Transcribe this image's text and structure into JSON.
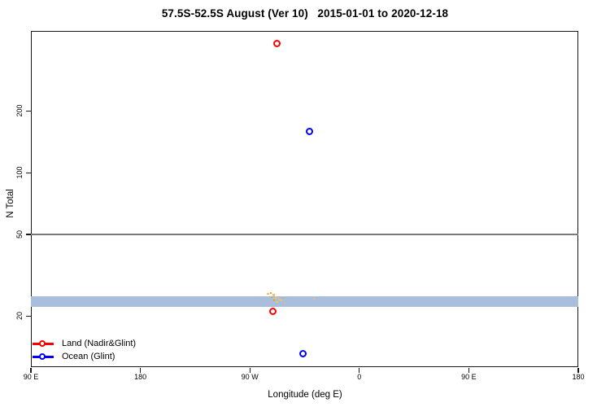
{
  "chart_data": {
    "type": "scatter",
    "title": "57.5S-52.5S August (Ver 10)   2015-01-01 to 2020-12-18",
    "xlabel": "Longitude (deg E)",
    "ylabel": "N Total",
    "y_scale": "log",
    "x_axis_deg_range": [
      90,
      540
    ],
    "ylim": [
      11.3,
      491
    ],
    "grid": "off",
    "legend_position": "bottom-left-inside",
    "x_ticks": [
      {
        "deg": 90,
        "label": "90 E"
      },
      {
        "deg": 180,
        "label": "180"
      },
      {
        "deg": 270,
        "label": "90 W"
      },
      {
        "deg": 360,
        "label": "0"
      },
      {
        "deg": 450,
        "label": "90 E"
      },
      {
        "deg": 540,
        "label": "180"
      }
    ],
    "y_ticks": [
      {
        "value": 20,
        "label": "20"
      },
      {
        "value": 50,
        "label": "50"
      },
      {
        "value": 100,
        "label": "100"
      },
      {
        "value": 200,
        "label": "200"
      }
    ],
    "series": [
      {
        "name": "Land (Nadir&Glint)",
        "color": "#ff0000",
        "marker": "open-circle",
        "points": [
          {
            "axis_deg": 292.7,
            "lon_deg_e": -67.3,
            "n_total": 425
          },
          {
            "axis_deg": 289.3,
            "lon_deg_e": -70.7,
            "n_total": 21
          }
        ]
      },
      {
        "name": "Ocean (Glint)",
        "color": "#0000ff",
        "marker": "open-circle",
        "points": [
          {
            "axis_deg": 319.5,
            "lon_deg_e": -40.5,
            "n_total": 158
          },
          {
            "axis_deg": 314.0,
            "lon_deg_e": -46.0,
            "n_total": 13
          }
        ]
      }
    ],
    "reference_line": {
      "n_total": 50,
      "color": "#7a7a7a"
    },
    "band": {
      "n_min": 22.2,
      "n_max": 25.0,
      "color": "#a8bedc"
    },
    "speckles": {
      "colors": [
        "#f1c35e",
        "#e5a23a"
      ],
      "points": [
        [
          284.6,
          25.7,
          3,
          2,
          0
        ],
        [
          287.3,
          25.9,
          2,
          2,
          1
        ],
        [
          289.3,
          25.4,
          3,
          3,
          0
        ],
        [
          287.9,
          24.7,
          2,
          2,
          1
        ],
        [
          291.3,
          24.5,
          4,
          2,
          0
        ],
        [
          294.0,
          24.1,
          3,
          2,
          0
        ],
        [
          290.0,
          23.9,
          2,
          2,
          1
        ],
        [
          296.0,
          23.9,
          2,
          2,
          0
        ],
        [
          292.6,
          23.4,
          3,
          2,
          0
        ],
        [
          297.3,
          24.3,
          2,
          1,
          1
        ],
        [
          298.6,
          23.2,
          2,
          1,
          0
        ],
        [
          322.7,
          24.1,
          3,
          1,
          0
        ]
      ]
    }
  }
}
